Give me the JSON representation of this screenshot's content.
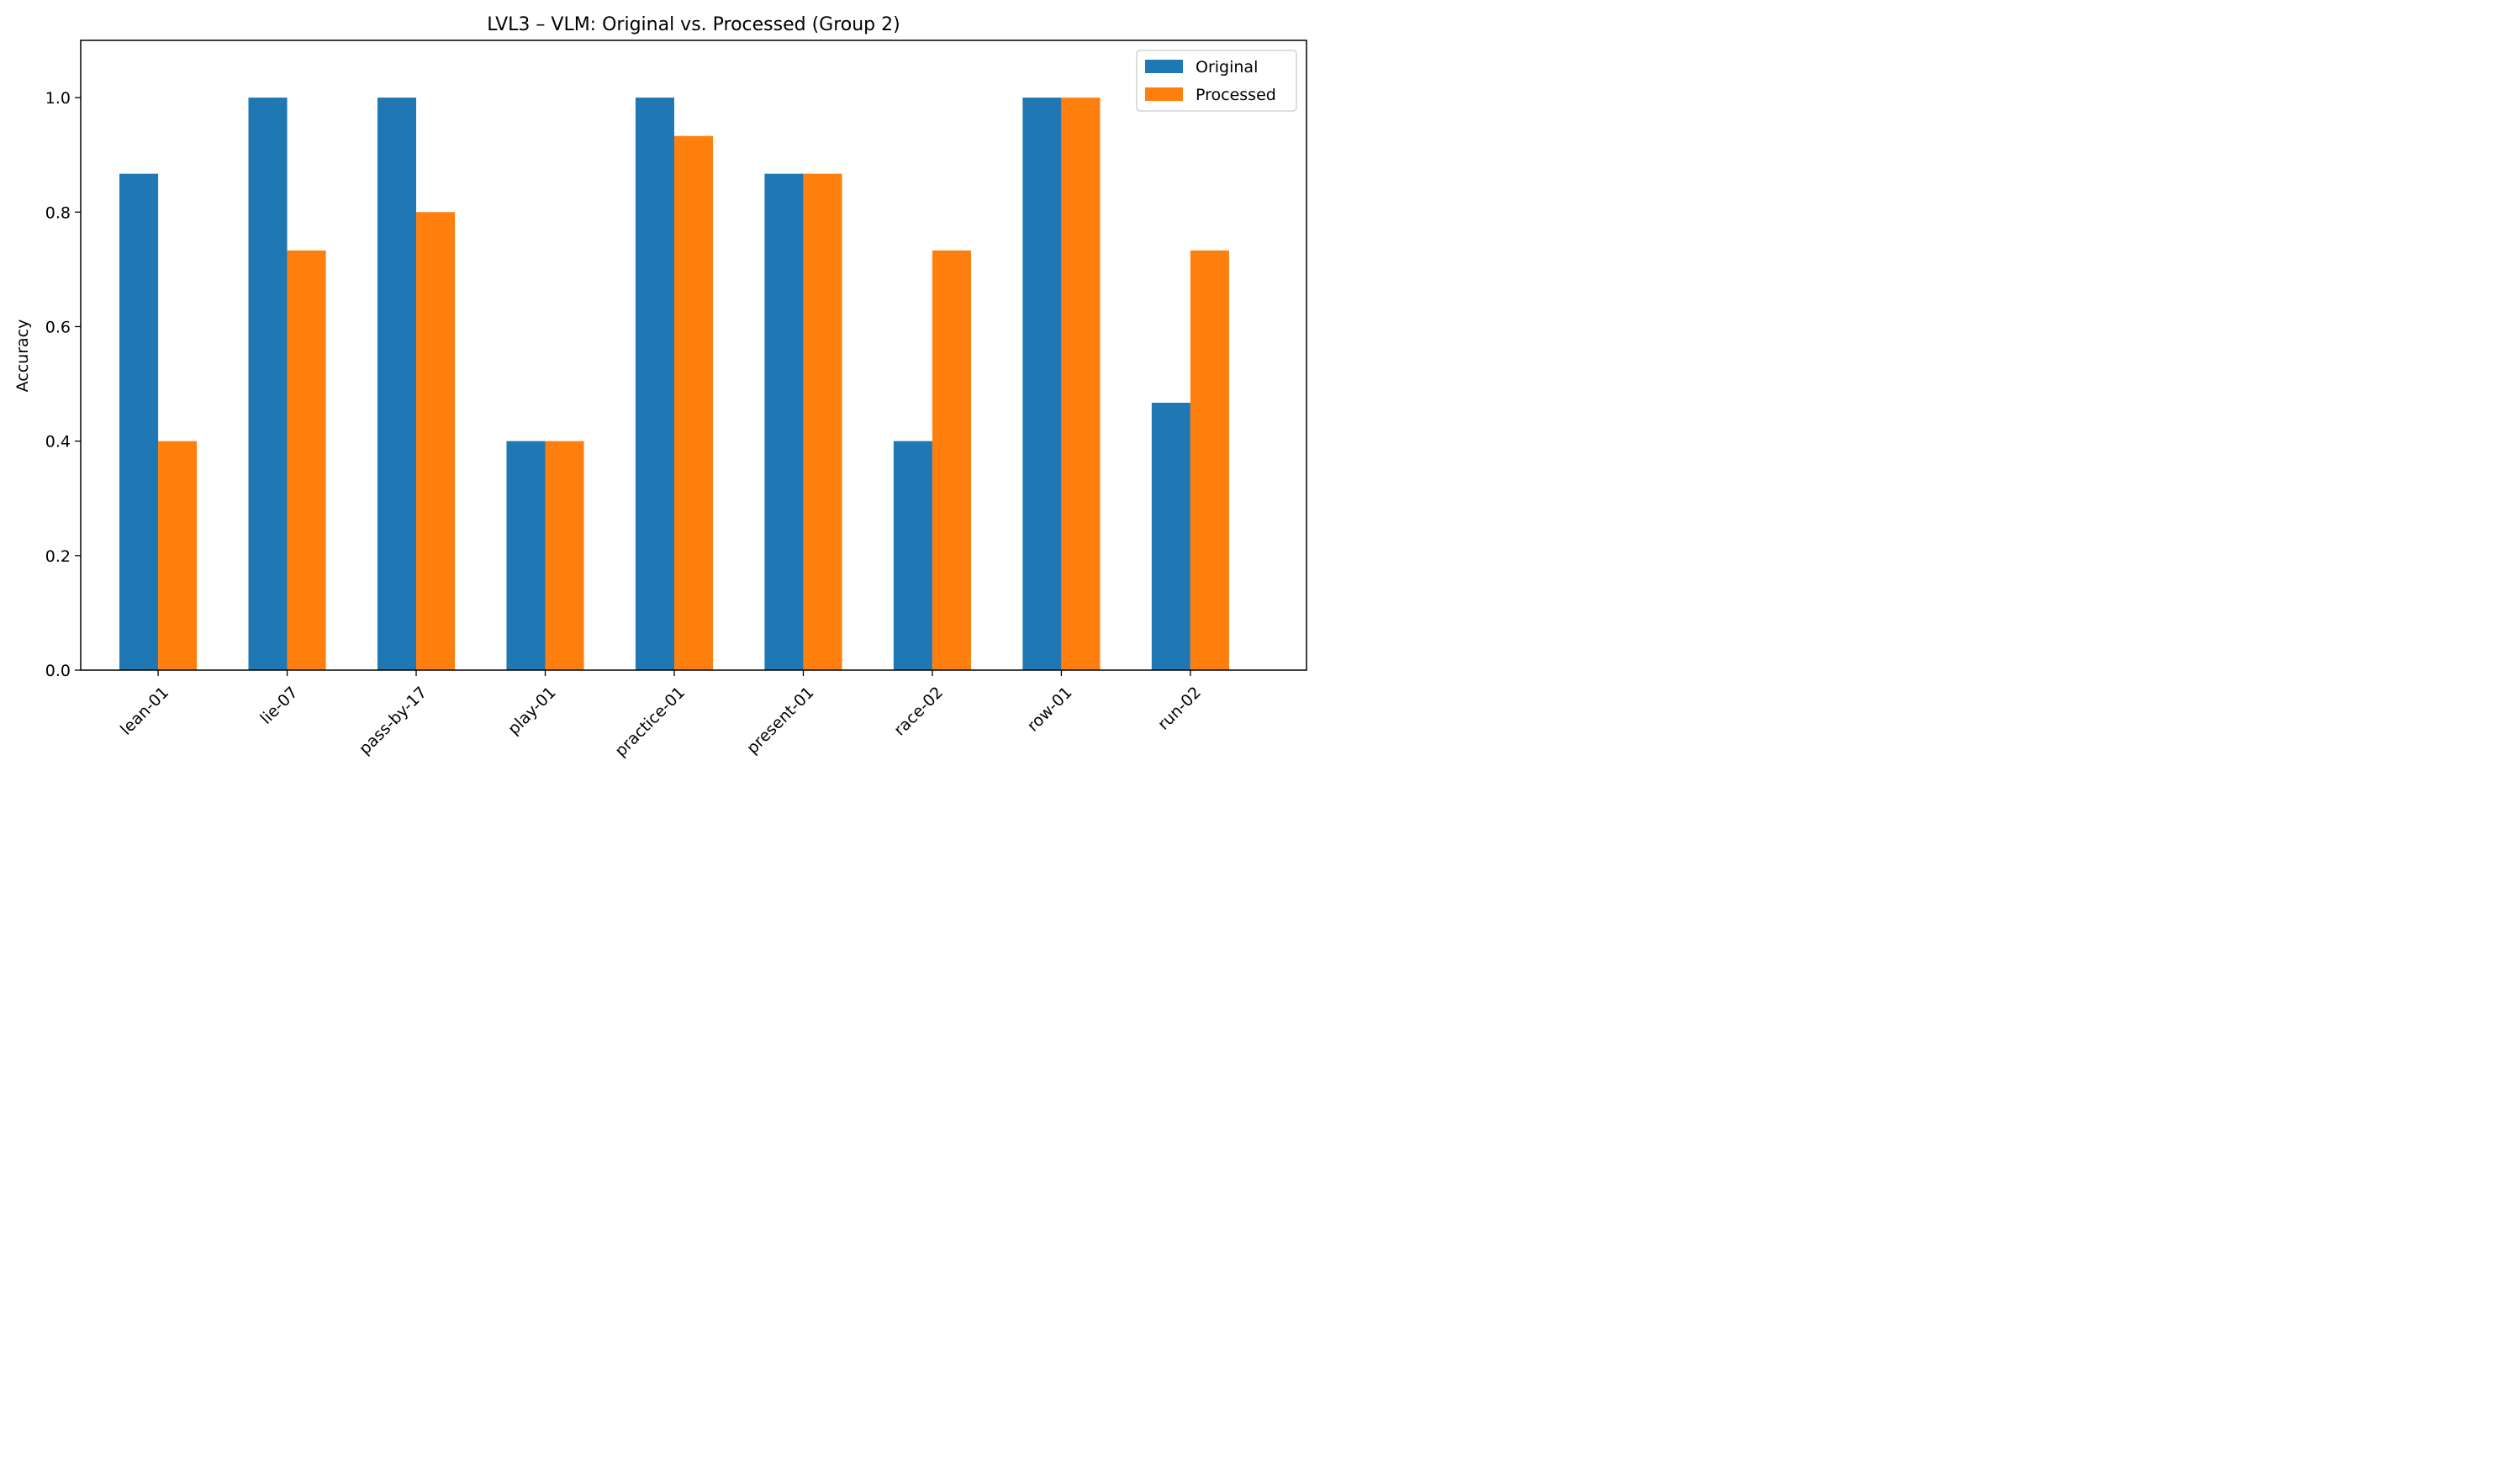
{
  "chart_data": {
    "type": "bar",
    "title": "LVL3 – VLM: Original vs. Processed (Group 2)",
    "xlabel": "",
    "ylabel": "Accuracy",
    "ylim": [
      0,
      1.1
    ],
    "yticks": [
      "0.0",
      "0.2",
      "0.4",
      "0.6",
      "0.8",
      "1.0"
    ],
    "grid": false,
    "legend_position": "top-right",
    "categories": [
      "lean-01",
      "lie-07",
      "pass-by-17",
      "play-01",
      "practice-01",
      "present-01",
      "race-02",
      "row-01",
      "run-02"
    ],
    "series": [
      {
        "name": "Original",
        "color": "#1f77b4",
        "values": [
          0.867,
          1.0,
          1.0,
          0.4,
          1.0,
          0.867,
          0.4,
          1.0,
          0.467
        ]
      },
      {
        "name": "Processed",
        "color": "#ff7f0e",
        "values": [
          0.4,
          0.733,
          0.8,
          0.4,
          0.933,
          0.867,
          0.733,
          1.0,
          0.733
        ]
      }
    ]
  }
}
